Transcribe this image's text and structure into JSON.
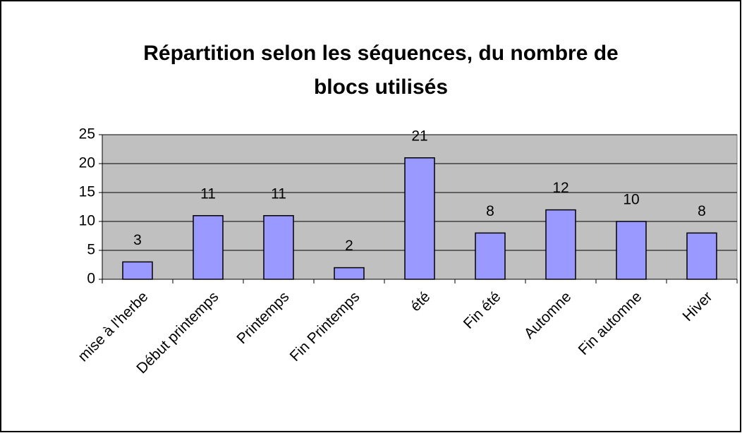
{
  "chart_data": {
    "type": "bar",
    "title": "Répartition selon les séquences, du nombre de",
    "title_line2": "blocs utilisés",
    "categories": [
      "mise à l'herbe",
      "Début printemps",
      "Printemps",
      "Fin Printemps",
      "été",
      "Fin été",
      "Automne",
      "Fin automne",
      "Hiver"
    ],
    "values": [
      3,
      11,
      11,
      2,
      21,
      8,
      12,
      10,
      8
    ],
    "color": "#9999ff",
    "ylim": [
      0,
      25
    ],
    "yticks": [
      0,
      5,
      10,
      15,
      20,
      25
    ],
    "grid": true
  }
}
